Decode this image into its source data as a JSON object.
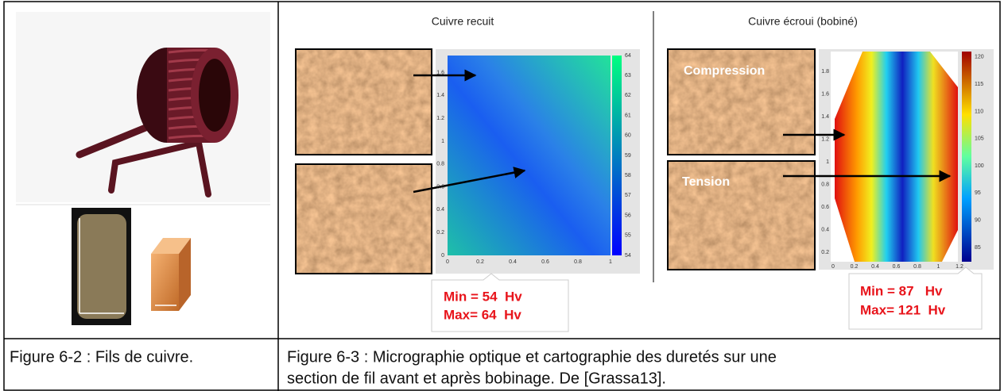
{
  "figure_left": {
    "caption": "Figure 6-2 : Fils de cuivre."
  },
  "figure_right": {
    "caption_lines": [
      "Figure 6-3 : Micrographie optique et cartographie des duretés sur une",
      "section de fil avant et après bobinage. De [Grassa13]."
    ],
    "panel_annealed": {
      "title": "Cuivre recuit",
      "x_ticks": [
        "0",
        "0.2",
        "0.4",
        "0.6",
        "0.8",
        "1"
      ],
      "y_ticks": [
        "0",
        "0.2",
        "0.4",
        "0.6",
        "0.8",
        "1",
        "1.2",
        "1.4",
        "1.6"
      ],
      "colorbar_ticks": [
        "54",
        "55",
        "56",
        "57",
        "58",
        "59",
        "60",
        "61",
        "62",
        "63",
        "64"
      ],
      "min_label": "Min = 54  Hv",
      "max_label": "Max= 64  Hv"
    },
    "panel_hardened": {
      "title": "Cuivre écroui (bobiné)",
      "zone_top": "Compression",
      "zone_bottom": "Tension",
      "x_ticks": [
        "0",
        "0.2",
        "0.4",
        "0.6",
        "0.8",
        "1",
        "1.2"
      ],
      "y_ticks": [
        "0.2",
        "0.4",
        "0.6",
        "0.8",
        "1",
        "1.2",
        "1.4",
        "1.6",
        "1.8"
      ],
      "colorbar_ticks": [
        "85",
        "90",
        "95",
        "100",
        "105",
        "110",
        "115",
        "120"
      ],
      "min_label": "Min = 87   Hv",
      "max_label": "Max= 121  Hv"
    }
  }
}
